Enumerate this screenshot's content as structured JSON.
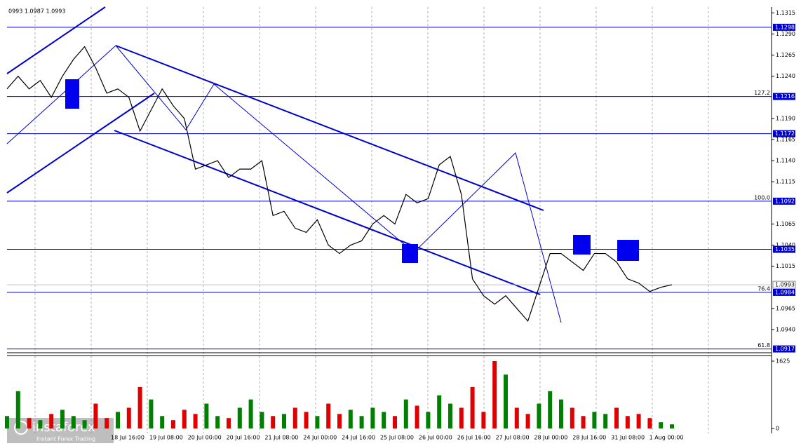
{
  "chart_data": {
    "type": "line",
    "header": "0993 1.0987 1.0993",
    "brand": {
      "name": "instaforex",
      "tagline": "Instant Forex Trading"
    },
    "ylim": [
      1.0915,
      1.1322
    ],
    "yticks": [
      {
        "value": 1.1315,
        "label": "1.1315"
      },
      {
        "value": 1.129,
        "label": "1.1290"
      },
      {
        "value": 1.1265,
        "label": "1.1265"
      },
      {
        "value": 1.124,
        "label": "1.1240"
      },
      {
        "value": 1.119,
        "label": "1.1190"
      },
      {
        "value": 1.1165,
        "label": "1.1165"
      },
      {
        "value": 1.114,
        "label": "1.1140"
      },
      {
        "value": 1.1115,
        "label": "1.1115"
      },
      {
        "value": 1.1065,
        "label": "1.1065"
      },
      {
        "value": 1.104,
        "label": "1.1040"
      },
      {
        "value": 1.1015,
        "label": "1.1015"
      },
      {
        "value": 1.0965,
        "label": "1.0965"
      },
      {
        "value": 1.094,
        "label": "1.0940"
      }
    ],
    "levels": [
      {
        "value": 1.1298,
        "label": "1.1298"
      },
      {
        "value": 1.1216,
        "label": "1.1216",
        "fib": "127.2"
      },
      {
        "value": 1.1172,
        "label": "1.1172"
      },
      {
        "value": 1.1092,
        "label": "1.1092",
        "fib": "100.0"
      },
      {
        "value": 1.1035,
        "label": "1.1035"
      },
      {
        "value": 1.0984,
        "label": "1.0984",
        "fib": "76.4"
      },
      {
        "value": 1.0917,
        "label": "1.0917",
        "fib": "61.8"
      }
    ],
    "current_price": {
      "value": 1.0993,
      "label": "1.0993"
    },
    "x_labels": [
      "18 Jul 16:00",
      "19 Jul 08:00",
      "20 Jul 00:00",
      "20 Jul 16:00",
      "21 Jul 08:00",
      "24 Jul 00:00",
      "24 Jul 16:00",
      "25 Jul 08:00",
      "26 Jul 00:00",
      "26 Jul 16:00",
      "27 Jul 08:00",
      "28 Jul 00:00",
      "28 Jul 16:00",
      "31 Jul 08:00",
      "1 Aug 00:00"
    ],
    "series": [
      {
        "color": "#000000",
        "values": [
          1.1225,
          1.124,
          1.1225,
          1.1235,
          1.1215,
          1.124,
          1.126,
          1.1275,
          1.125,
          1.122,
          1.1225,
          1.1215,
          1.1175,
          1.12,
          1.1225,
          1.1205,
          1.119,
          1.113,
          1.1135,
          1.114,
          1.112,
          1.113,
          1.113,
          1.114,
          1.1075,
          1.108,
          1.106,
          1.1055,
          1.107,
          1.104,
          1.103,
          1.104,
          1.1045,
          1.1065,
          1.1075,
          1.1065,
          1.11,
          1.109,
          1.1095,
          1.1135,
          1.1145,
          1.11,
          1.1,
          1.098,
          1.097,
          1.098,
          1.0965,
          1.095,
          1.099,
          1.103,
          1.103,
          1.102,
          1.101,
          1.103,
          1.103,
          1.102,
          1.1,
          1.0995,
          1.0985,
          1.099,
          1.0993
        ]
      }
    ],
    "volume": {
      "ylim": [
        0,
        1625
      ],
      "yticks": [
        0,
        1625
      ],
      "up_color": "#008000",
      "down_color": "#e00000",
      "values": [
        300,
        900,
        250,
        200,
        350,
        450,
        300,
        200,
        600,
        250,
        400,
        500,
        1000,
        700,
        300,
        200,
        450,
        350,
        600,
        300,
        250,
        500,
        700,
        400,
        300,
        350,
        500,
        400,
        300,
        600,
        350,
        450,
        300,
        500,
        400,
        300,
        700,
        550,
        400,
        800,
        600,
        500,
        1000,
        400,
        1625,
        1300,
        500,
        350,
        600,
        900,
        700,
        500,
        300,
        400,
        350,
        500,
        300,
        350,
        250,
        150,
        100
      ]
    },
    "level_color": "#0000cc"
  }
}
